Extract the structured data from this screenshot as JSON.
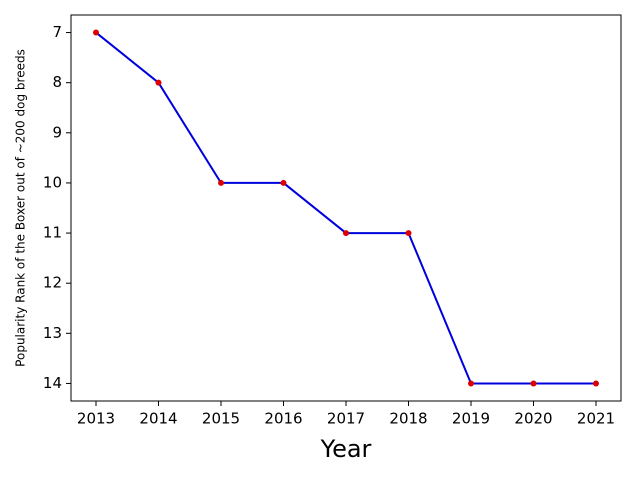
{
  "chart_data": {
    "type": "line",
    "xlabel": "Year",
    "ylabel": "Popularity Rank of the Boxer out of ~200 dog breeds",
    "x": [
      2013,
      2014,
      2015,
      2016,
      2017,
      2018,
      2019,
      2020,
      2021
    ],
    "series": [
      {
        "color": "#0000dd",
        "marker_color": "#dd0000",
        "values": [
          7,
          8,
          10,
          10,
          11,
          11,
          14,
          14,
          14
        ]
      }
    ],
    "xlim": [
      2012.6,
      2021.4
    ],
    "xticks": [
      2013,
      2014,
      2015,
      2016,
      2017,
      2018,
      2019,
      2020,
      2021
    ],
    "ylim": [
      14.35,
      6.65
    ],
    "yticks": [
      7,
      8,
      9,
      10,
      11,
      12,
      13,
      14
    ],
    "grid": false
  }
}
